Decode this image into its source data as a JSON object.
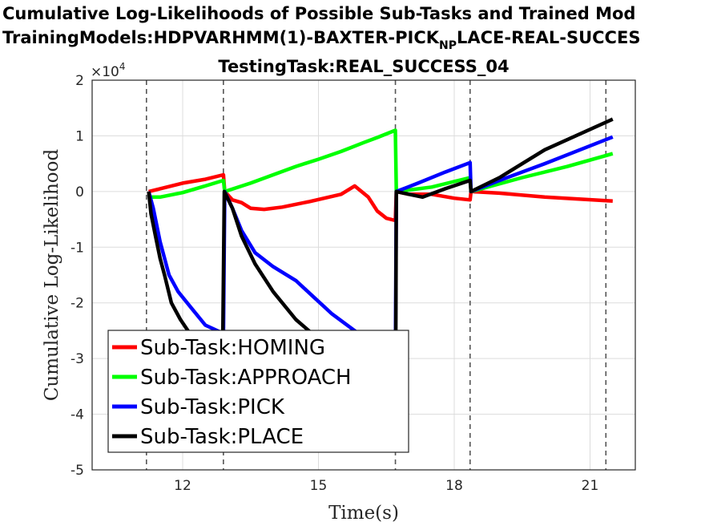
{
  "chart_data": {
    "type": "line",
    "title_lines": [
      "Cumulative Log-Likelihoods of Possible Sub-Tasks and Trained Mod",
      "TrainingModels:HDPVARHMM(1)-BAXTER-PICK",
      "TestingTask:REAL_SUCCESS_04"
    ],
    "title_line2_subscript": "NP",
    "title_line2_suffix": "LACE-REAL-SUCCES",
    "xlabel": "Time(s)",
    "ylabel": "Cumulative Log-Likelihood",
    "y_exponent_label": "×10",
    "y_exponent": "4",
    "xlim": [
      10,
      22
    ],
    "ylim": [
      -5,
      2
    ],
    "x_ticks": [
      12,
      15,
      18,
      21
    ],
    "y_ticks": [
      2,
      1,
      0,
      -1,
      -2,
      -3,
      -4,
      -5
    ],
    "grid": true,
    "legend_position": "bottom-left",
    "subtask_boundaries": [
      11.2,
      12.9,
      16.7,
      18.35,
      21.35
    ],
    "series": [
      {
        "name": "Sub-Task:HOMING",
        "color": "#ff0000",
        "points": [
          [
            11.25,
            0
          ],
          [
            11.5,
            0.05
          ],
          [
            12,
            0.15
          ],
          [
            12.5,
            0.22
          ],
          [
            12.9,
            0.3
          ],
          [
            12.93,
            0
          ],
          [
            13.1,
            -0.15
          ],
          [
            13.3,
            -0.2
          ],
          [
            13.5,
            -0.3
          ],
          [
            13.8,
            -0.32
          ],
          [
            14.2,
            -0.28
          ],
          [
            14.8,
            -0.18
          ],
          [
            15.5,
            -0.05
          ],
          [
            15.8,
            0.1
          ],
          [
            16.1,
            -0.1
          ],
          [
            16.3,
            -0.35
          ],
          [
            16.5,
            -0.48
          ],
          [
            16.7,
            -0.52
          ],
          [
            16.72,
            0
          ],
          [
            17,
            -0.05
          ],
          [
            17.5,
            -0.05
          ],
          [
            18,
            -0.12
          ],
          [
            18.35,
            -0.15
          ],
          [
            18.37,
            0
          ],
          [
            19,
            -0.03
          ],
          [
            20,
            -0.1
          ],
          [
            21.5,
            -0.17
          ]
        ]
      },
      {
        "name": "Sub-Task:APPROACH",
        "color": "#00ff00",
        "points": [
          [
            11.25,
            -0.1
          ],
          [
            11.5,
            -0.1
          ],
          [
            12,
            -0.02
          ],
          [
            12.5,
            0.1
          ],
          [
            12.9,
            0.2
          ],
          [
            12.93,
            0
          ],
          [
            13.5,
            0.15
          ],
          [
            14,
            0.3
          ],
          [
            14.5,
            0.45
          ],
          [
            15,
            0.58
          ],
          [
            15.5,
            0.72
          ],
          [
            16,
            0.88
          ],
          [
            16.3,
            0.97
          ],
          [
            16.7,
            1.1
          ],
          [
            16.72,
            0
          ],
          [
            17.5,
            0.08
          ],
          [
            18.35,
            0.25
          ],
          [
            18.37,
            0
          ],
          [
            19.5,
            0.25
          ],
          [
            20.5,
            0.45
          ],
          [
            21.5,
            0.68
          ]
        ]
      },
      {
        "name": "Sub-Task:PICK",
        "color": "#0000ff",
        "points": [
          [
            11.25,
            0
          ],
          [
            11.35,
            -0.3
          ],
          [
            11.5,
            -0.9
          ],
          [
            11.7,
            -1.5
          ],
          [
            11.9,
            -1.8
          ],
          [
            12.2,
            -2.1
          ],
          [
            12.5,
            -2.4
          ],
          [
            12.9,
            -2.55
          ],
          [
            12.93,
            0
          ],
          [
            13.1,
            -0.3
          ],
          [
            13.3,
            -0.7
          ],
          [
            13.6,
            -1.1
          ],
          [
            14,
            -1.35
          ],
          [
            14.5,
            -1.6
          ],
          [
            14.9,
            -1.9
          ],
          [
            15.3,
            -2.2
          ],
          [
            15.8,
            -2.5
          ],
          [
            16.1,
            -2.7
          ],
          [
            16.4,
            -2.95
          ],
          [
            16.7,
            -3.1
          ],
          [
            16.72,
            0
          ],
          [
            17.2,
            0.15
          ],
          [
            17.8,
            0.35
          ],
          [
            18.35,
            0.52
          ],
          [
            18.37,
            0
          ],
          [
            19,
            0.2
          ],
          [
            20,
            0.5
          ],
          [
            21.5,
            0.98
          ]
        ]
      },
      {
        "name": "Sub-Task:PLACE",
        "color": "#000000",
        "points": [
          [
            11.25,
            0
          ],
          [
            11.3,
            -0.4
          ],
          [
            11.4,
            -0.8
          ],
          [
            11.5,
            -1.2
          ],
          [
            11.6,
            -1.5
          ],
          [
            11.75,
            -2.0
          ],
          [
            11.95,
            -2.3
          ],
          [
            12.2,
            -2.6
          ],
          [
            12.45,
            -2.85
          ],
          [
            12.7,
            -3.05
          ],
          [
            12.88,
            -3.2
          ],
          [
            12.92,
            0
          ],
          [
            13.1,
            -0.3
          ],
          [
            13.3,
            -0.8
          ],
          [
            13.6,
            -1.3
          ],
          [
            14,
            -1.8
          ],
          [
            14.5,
            -2.3
          ],
          [
            15,
            -2.65
          ],
          [
            15.5,
            -3.0
          ],
          [
            16,
            -3.4
          ],
          [
            16.3,
            -3.9
          ],
          [
            16.55,
            -4.65
          ],
          [
            16.7,
            -4.6
          ],
          [
            16.72,
            0
          ],
          [
            17,
            -0.05
          ],
          [
            17.3,
            -0.1
          ],
          [
            17.8,
            0.05
          ],
          [
            18.35,
            0.2
          ],
          [
            18.37,
            0
          ],
          [
            19,
            0.25
          ],
          [
            20,
            0.75
          ],
          [
            21.5,
            1.3
          ]
        ]
      }
    ]
  }
}
